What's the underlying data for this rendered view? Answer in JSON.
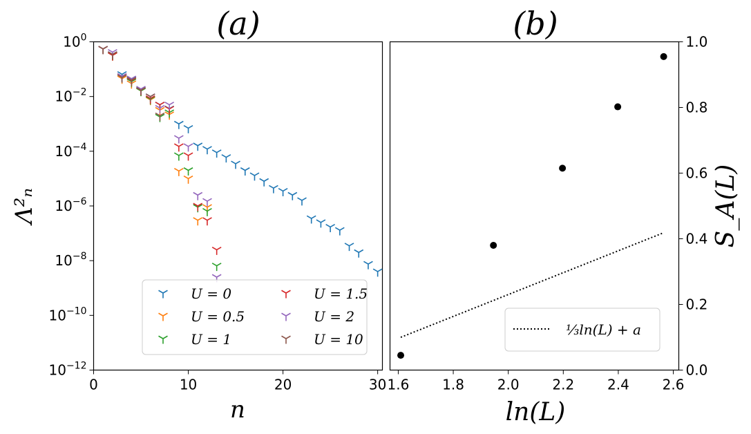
{
  "chart_data": [
    {
      "panel": "a",
      "type": "scatter",
      "title": "(a)",
      "xlabel": "n",
      "ylabel": "Λ²ₙ",
      "yscale": "log",
      "xlim": [
        0,
        30.5
      ],
      "ylim": [
        1e-12,
        1
      ],
      "xticks": [
        0,
        10,
        20,
        30
      ],
      "xtick_labels": [
        "0",
        "10",
        "20",
        "30"
      ],
      "ytick_labels": [
        {
          "base": "10",
          "exp": "0"
        },
        {
          "base": "10",
          "exp": "−2"
        },
        {
          "base": "10",
          "exp": "−4"
        },
        {
          "base": "10",
          "exp": "−6"
        },
        {
          "base": "10",
          "exp": "−8"
        },
        {
          "base": "10",
          "exp": "−10"
        },
        {
          "base": "10",
          "exp": "−12"
        }
      ],
      "legend_location": "lower-right",
      "series": [
        {
          "name": "U = 0",
          "color": "#1f77b4",
          "x": [
            1,
            2,
            3,
            4,
            5,
            6,
            7,
            8,
            9,
            10,
            11,
            12,
            13,
            14,
            15,
            16,
            17,
            18,
            19,
            20,
            21,
            22,
            23,
            24,
            25,
            26,
            27,
            28,
            29,
            30
          ],
          "y": [
            0.55,
            0.35,
            0.065,
            0.042,
            0.018,
            0.01,
            0.005,
            0.0036,
            0.001,
            0.0007,
            0.00016,
            0.00012,
            9e-05,
            6e-05,
            3.5e-05,
            2e-05,
            1.3e-05,
            8e-06,
            4.5e-06,
            3.5e-06,
            2.5e-06,
            1.6e-06,
            3.5e-07,
            2.5e-07,
            1.7e-07,
            1.3e-07,
            3.5e-08,
            2e-08,
            7.5e-09,
            4e-09
          ]
        },
        {
          "name": "U = 0.5",
          "color": "#ff7f0e",
          "x": [
            1,
            2,
            3,
            4,
            5,
            6,
            7,
            8,
            9,
            10,
            11,
            12
          ],
          "y": [
            0.55,
            0.32,
            0.045,
            0.03,
            0.016,
            0.0075,
            0.0032,
            0.0022,
            1.9e-05,
            1e-05,
            3e-07,
            9e-07
          ]
        },
        {
          "name": "U = 1",
          "color": "#2ca02c",
          "x": [
            1,
            2,
            3,
            4,
            5,
            6,
            7,
            8,
            9,
            10,
            11,
            12,
            13
          ],
          "y": [
            0.55,
            0.32,
            0.05,
            0.035,
            0.016,
            0.008,
            0.0018,
            0.0026,
            7e-05,
            2e-05,
            9e-07,
            6.5e-07,
            6.5e-09
          ]
        },
        {
          "name": "U = 1.5",
          "color": "#d62728",
          "x": [
            1,
            2,
            3,
            4,
            5,
            6,
            7,
            8,
            9,
            10,
            11,
            12,
            13
          ],
          "y": [
            0.55,
            0.32,
            0.055,
            0.038,
            0.017,
            0.0085,
            0.005,
            0.0035,
            0.00015,
            7e-05,
            1e-06,
            3e-07,
            2.5e-08
          ]
        },
        {
          "name": "U = 2",
          "color": "#9467bd",
          "x": [
            1,
            2,
            3,
            4,
            5,
            6,
            7,
            8,
            9,
            10,
            11,
            12,
            13
          ],
          "y": [
            0.55,
            0.42,
            0.055,
            0.045,
            0.019,
            0.01,
            0.0038,
            0.005,
            0.0003,
            0.00015,
            2.5e-06,
            1.5e-06,
            2.5e-09
          ]
        },
        {
          "name": "U = 10",
          "color": "#8c564b",
          "x": [
            1,
            2,
            3,
            4,
            5,
            6,
            7
          ],
          "y": [
            0.55,
            0.35,
            0.05,
            0.04,
            0.017,
            0.01,
            0.002
          ]
        }
      ]
    },
    {
      "panel": "b",
      "type": "scatter",
      "title": "(b)",
      "xlabel": "ln(L)",
      "ylabel": "S_A(L)",
      "xlim": [
        1.57,
        2.62
      ],
      "ylim": [
        0.0,
        1.0
      ],
      "xticks": [
        1.6,
        1.8,
        2.0,
        2.2,
        2.4,
        2.6
      ],
      "xtick_labels": [
        "1.6",
        "1.8",
        "2.0",
        "2.2",
        "2.4",
        "2.6"
      ],
      "yticks": [
        0.0,
        0.2,
        0.4,
        0.6,
        0.8,
        1.0
      ],
      "ytick_labels": [
        "0.0",
        "0.2",
        "0.4",
        "0.6",
        "0.8",
        "1.0"
      ],
      "points": {
        "x": [
          1.609,
          1.946,
          2.197,
          2.398,
          2.565
        ],
        "y": [
          0.045,
          0.38,
          0.615,
          0.802,
          0.955
        ],
        "color": "#000000"
      },
      "fit": {
        "label": "⅓ln(L) + a",
        "slope": 0.3333,
        "intercept": -0.4365,
        "x_range": [
          1.609,
          2.565
        ],
        "style": "dotted",
        "color": "#000000"
      },
      "legend_location": "lower-right"
    }
  ]
}
